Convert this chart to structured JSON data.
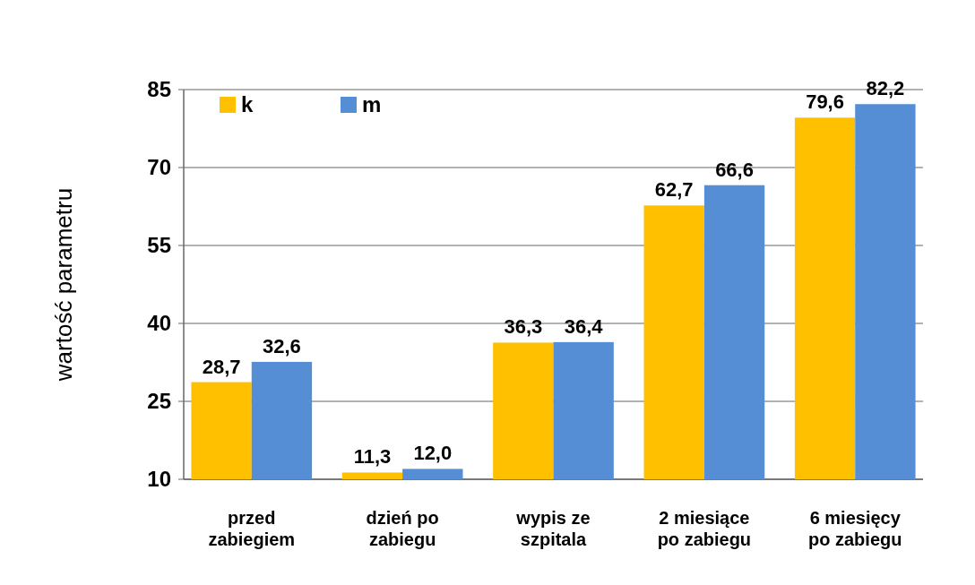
{
  "chart_data": {
    "type": "bar",
    "ylabel": "wartość parametru",
    "categories": [
      "przed\nzabiegiem",
      "dzień po\nzabiegu",
      "wypis ze\nszpitala",
      "2 miesiące\npo zabiegu",
      "6 miesięcy\npo zabiegu"
    ],
    "series": [
      {
        "name": "k",
        "color": "#ffc000",
        "values": [
          28.7,
          11.3,
          36.3,
          62.7,
          79.6
        ],
        "value_labels": [
          "28,7",
          "11,3",
          "36,3",
          "62,7",
          "79,6"
        ]
      },
      {
        "name": "m",
        "color": "#558ed5",
        "values": [
          32.6,
          12.0,
          36.4,
          66.6,
          82.2
        ],
        "value_labels": [
          "32,6",
          "12,0",
          "36,4",
          "66,6",
          "82,2"
        ]
      }
    ],
    "ylim": [
      10,
      85
    ],
    "yticks": [
      10,
      25,
      40,
      55,
      70,
      85
    ],
    "grid": "y",
    "legend": "top left"
  }
}
